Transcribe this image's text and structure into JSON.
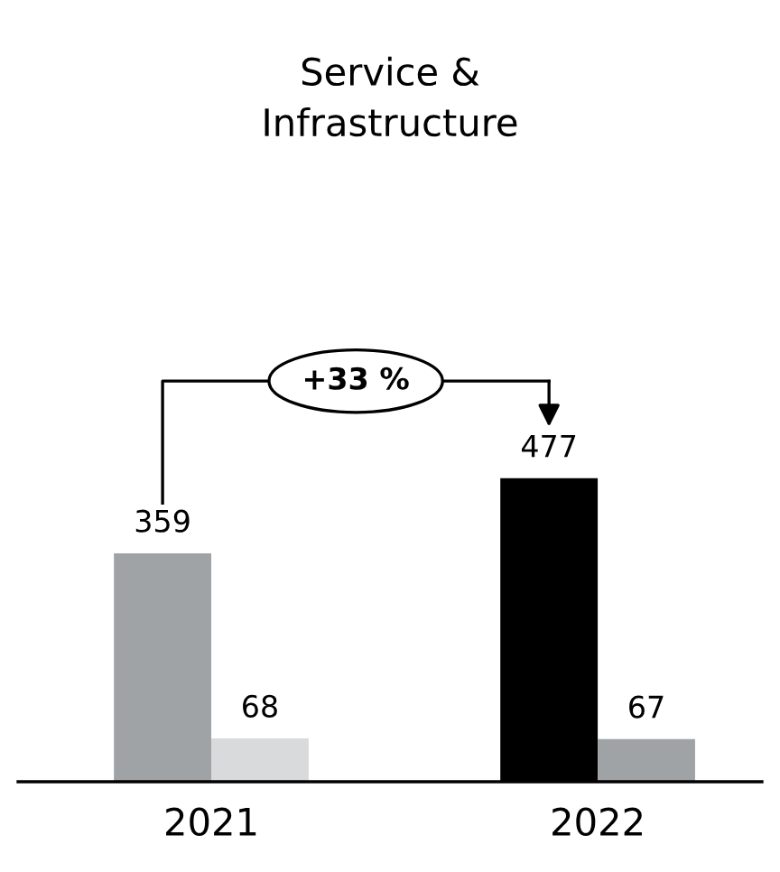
{
  "chart_data": {
    "type": "bar",
    "title": "Service &\nInfrastructure",
    "categories": [
      "2021",
      "2022"
    ],
    "series": [
      {
        "colors": [
          "#a0a3a6",
          "#000000"
        ],
        "values": [
          359,
          477
        ]
      },
      {
        "colors": [
          "#d9dadb",
          "#a0a3a6"
        ],
        "values": [
          68,
          67
        ]
      }
    ],
    "data_labels": true,
    "grid": false,
    "legend": false,
    "annotations": [
      "+33 %"
    ]
  }
}
